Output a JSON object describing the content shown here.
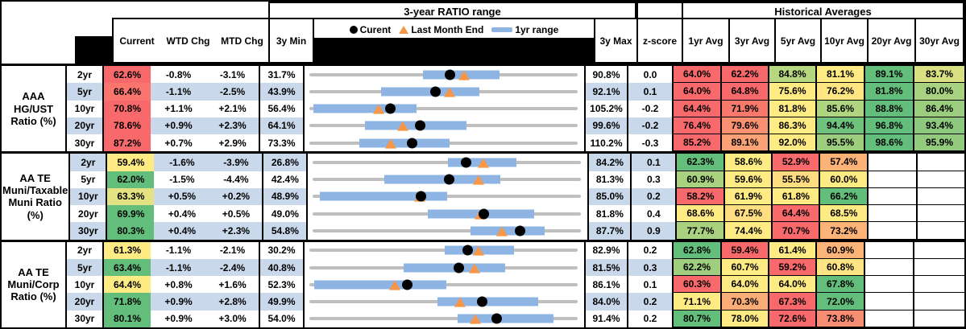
{
  "header": {
    "col_current": "Current",
    "col_wtd": "WTD Chg",
    "col_mtd": "MTD Chg",
    "col_3y_min": "3y Min",
    "col_3y_max": "3y Max",
    "col_zscore": "z-score",
    "chart_title": "3-year RATIO range",
    "hist_title": "Historical Averages",
    "avg_cols": [
      "1yr Avg",
      "3yr Avg",
      "5yr Avg",
      "10yr Avg",
      "20yr Avg",
      "30yr Avg"
    ]
  },
  "legend": {
    "current_label": "Curent",
    "last_month_label": "Last Month End",
    "range_label": "1yr range"
  },
  "colors": {
    "band": "#C9D9EB",
    "bar": "#8DB4E2",
    "track": "#BFBFBF",
    "dot": "#000000",
    "triangle": "#F79646",
    "heat_red": "#F8696B",
    "heat_yellow": "#FFEB84",
    "heat_green": "#63BE7B"
  },
  "chart_data": {
    "type": "table",
    "columns": [
      "Current",
      "WTD Chg",
      "MTD Chg",
      "3y Min",
      "3-year RATIO range",
      "3y Max",
      "z-score",
      "1yr Avg",
      "3yr Avg",
      "5yr Avg",
      "10yr Avg",
      "20yr Avg",
      "30yr Avg"
    ],
    "groups": [
      {
        "label": "AAA HG/UST Ratio (%)",
        "rows": [
          {
            "tenor": "2yr",
            "current": {
              "v": "62.6%",
              "bg": "#F8696B"
            },
            "wtd": "-0.8%",
            "mtd": "-3.1%",
            "min": "31.7%",
            "max": "90.8%",
            "z": "0.0",
            "range": {
              "min": 31.7,
              "max": 90.8,
              "bar_lo": 56.4,
              "bar_hi": 73.6,
              "current": 62.6,
              "last_month": 65.7
            },
            "avgs": [
              {
                "v": "64.0%",
                "bg": "#F8696B"
              },
              {
                "v": "62.2%",
                "bg": "#F8696B"
              },
              {
                "v": "84.8%",
                "bg": "#B5D77F"
              },
              {
                "v": "81.1%",
                "bg": "#FFEB84"
              },
              {
                "v": "89.1%",
                "bg": "#63BE7B"
              },
              {
                "v": "83.7%",
                "bg": "#D8E082"
              }
            ]
          },
          {
            "tenor": "5yr",
            "current": {
              "v": "66.4%",
              "bg": "#F9756E"
            },
            "wtd": "-1.1%",
            "mtd": "-2.5%",
            "min": "43.9%",
            "max": "92.1%",
            "z": "0.1",
            "range": {
              "min": 43.9,
              "max": 92.1,
              "bar_lo": 56.4,
              "bar_hi": 74.4,
              "current": 66.4,
              "last_month": 68.9
            },
            "avgs": [
              {
                "v": "64.0%",
                "bg": "#F8696B"
              },
              {
                "v": "64.8%",
                "bg": "#F8696B"
              },
              {
                "v": "75.6%",
                "bg": "#FFEB84"
              },
              {
                "v": "76.2%",
                "bg": "#FFE683"
              },
              {
                "v": "81.8%",
                "bg": "#63BE7B"
              },
              {
                "v": "80.0%",
                "bg": "#A8D27F"
              }
            ]
          },
          {
            "tenor": "10yr",
            "current": {
              "v": "70.8%",
              "bg": "#F8696B"
            },
            "wtd": "+1.1%",
            "mtd": "+2.1%",
            "min": "56.4%",
            "max": "105.2%",
            "z": "-0.2",
            "range": {
              "min": 56.4,
              "max": 105.2,
              "bar_lo": 56.6,
              "bar_hi": 75.6,
              "current": 70.8,
              "last_month": 68.7
            },
            "avgs": [
              {
                "v": "64.4%",
                "bg": "#F8696B"
              },
              {
                "v": "71.9%",
                "bg": "#F97A6D"
              },
              {
                "v": "81.8%",
                "bg": "#FFEB84"
              },
              {
                "v": "85.6%",
                "bg": "#AFD580"
              },
              {
                "v": "88.8%",
                "bg": "#63BE7B"
              },
              {
                "v": "86.4%",
                "bg": "#9BCD7E"
              }
            ]
          },
          {
            "tenor": "20yr",
            "current": {
              "v": "78.6%",
              "bg": "#F8696B"
            },
            "wtd": "+0.9%",
            "mtd": "+2.3%",
            "min": "64.1%",
            "max": "99.6%",
            "z": "-0.2",
            "range": {
              "min": 64.1,
              "max": 99.6,
              "bar_lo": 71.2,
              "bar_hi": 84.8,
              "current": 78.6,
              "last_month": 76.3
            },
            "avgs": [
              {
                "v": "76.4%",
                "bg": "#F8696B"
              },
              {
                "v": "79.6%",
                "bg": "#FA8F72"
              },
              {
                "v": "86.3%",
                "bg": "#FFEB84"
              },
              {
                "v": "94.4%",
                "bg": "#6EC27C"
              },
              {
                "v": "96.8%",
                "bg": "#63BE7B"
              },
              {
                "v": "93.4%",
                "bg": "#8CC87D"
              }
            ]
          },
          {
            "tenor": "30yr",
            "current": {
              "v": "87.2%",
              "bg": "#F8696B"
            },
            "wtd": "+0.7%",
            "mtd": "+2.9%",
            "min": "73.3%",
            "max": "110.2%",
            "z": "-0.3",
            "range": {
              "min": 73.3,
              "max": 110.2,
              "bar_lo": 79.9,
              "bar_hi": 92.5,
              "current": 87.2,
              "last_month": 84.3
            },
            "avgs": [
              {
                "v": "85.2%",
                "bg": "#F8696B"
              },
              {
                "v": "89.1%",
                "bg": "#FBA376"
              },
              {
                "v": "92.0%",
                "bg": "#FFEB84"
              },
              {
                "v": "95.5%",
                "bg": "#9DCE7E"
              },
              {
                "v": "98.6%",
                "bg": "#63BE7B"
              },
              {
                "v": "95.9%",
                "bg": "#93CB7D"
              }
            ]
          }
        ]
      },
      {
        "label": "AA TE Muni/Taxable Muni Ratio (%)",
        "rows": [
          {
            "tenor": "2yr",
            "current": {
              "v": "59.4%",
              "bg": "#FFEB84"
            },
            "wtd": "-1.6%",
            "mtd": "-3.9%",
            "min": "26.8%",
            "max": "84.2%",
            "z": "0.1",
            "range": {
              "min": 26.8,
              "max": 84.2,
              "bar_lo": 55.5,
              "bar_hi": 70.4,
              "current": 59.4,
              "last_month": 63.3
            },
            "avgs": [
              {
                "v": "62.3%",
                "bg": "#63BE7B"
              },
              {
                "v": "58.6%",
                "bg": "#FFEB84"
              },
              {
                "v": "52.9%",
                "bg": "#F8696B"
              },
              {
                "v": "57.4%",
                "bg": "#FBB377"
              },
              {
                "v": "",
                "bg": "#FFFFFF"
              },
              {
                "v": "",
                "bg": "#FFFFFF"
              }
            ]
          },
          {
            "tenor": "5yr",
            "current": {
              "v": "62.0%",
              "bg": "#63BE7B"
            },
            "wtd": "-1.5%",
            "mtd": "-4.4%",
            "min": "42.4%",
            "max": "81.3%",
            "z": "0.3",
            "range": {
              "min": 42.4,
              "max": 81.3,
              "bar_lo": 52.5,
              "bar_hi": 69.6,
              "current": 62.0,
              "last_month": 66.4
            },
            "avgs": [
              {
                "v": "60.9%",
                "bg": "#A8D27F"
              },
              {
                "v": "59.6%",
                "bg": "#FFEB84"
              },
              {
                "v": "55.5%",
                "bg": "#FFDC81"
              },
              {
                "v": "60.0%",
                "bg": "#FFEB84"
              },
              {
                "v": "",
                "bg": "#FFFFFF"
              },
              {
                "v": "",
                "bg": "#FFFFFF"
              }
            ]
          },
          {
            "tenor": "10yr",
            "current": {
              "v": "63.3%",
              "bg": "#E3E383"
            },
            "wtd": "+0.5%",
            "mtd": "+0.2%",
            "min": "48.9%",
            "max": "85.0%",
            "z": "0.2",
            "range": {
              "min": 48.9,
              "max": 85.0,
              "bar_lo": 49.4,
              "bar_hi": 66.8,
              "current": 63.3,
              "last_month": 63.1
            },
            "avgs": [
              {
                "v": "58.2%",
                "bg": "#F8696B"
              },
              {
                "v": "61.9%",
                "bg": "#FFEB84"
              },
              {
                "v": "61.8%",
                "bg": "#FFEB84"
              },
              {
                "v": "66.2%",
                "bg": "#63BE7B"
              },
              {
                "v": "",
                "bg": "#FFFFFF"
              },
              {
                "v": "",
                "bg": "#FFFFFF"
              }
            ]
          },
          {
            "tenor": "20yr",
            "current": {
              "v": "69.9%",
              "bg": "#63BE7B"
            },
            "wtd": "+0.4%",
            "mtd": "+0.5%",
            "min": "49.0%",
            "max": "81.8%",
            "z": "0.4",
            "range": {
              "min": 49.0,
              "max": 81.8,
              "bar_lo": 62.9,
              "bar_hi": 76.1,
              "current": 69.9,
              "last_month": 69.4
            },
            "avgs": [
              {
                "v": "68.6%",
                "bg": "#FFEB84"
              },
              {
                "v": "67.5%",
                "bg": "#FFDD81"
              },
              {
                "v": "64.4%",
                "bg": "#F8696B"
              },
              {
                "v": "68.5%",
                "bg": "#FFEB84"
              },
              {
                "v": "",
                "bg": "#FFFFFF"
              },
              {
                "v": "",
                "bg": "#FFFFFF"
              }
            ]
          },
          {
            "tenor": "30yr",
            "current": {
              "v": "80.3%",
              "bg": "#63BE7B"
            },
            "wtd": "+0.4%",
            "mtd": "+2.3%",
            "min": "54.8%",
            "max": "87.7%",
            "z": "0.9",
            "range": {
              "min": 54.8,
              "max": 87.7,
              "bar_lo": 74.1,
              "bar_hi": 83.3,
              "current": 80.3,
              "last_month": 78.0
            },
            "avgs": [
              {
                "v": "77.7%",
                "bg": "#A8D27F"
              },
              {
                "v": "74.4%",
                "bg": "#FFEB84"
              },
              {
                "v": "70.7%",
                "bg": "#F8696B"
              },
              {
                "v": "73.2%",
                "bg": "#FBB377"
              },
              {
                "v": "",
                "bg": "#FFFFFF"
              },
              {
                "v": "",
                "bg": "#FFFFFF"
              }
            ]
          }
        ]
      },
      {
        "label": "AA TE Muni/Corp Ratio (%)",
        "rows": [
          {
            "tenor": "2yr",
            "current": {
              "v": "61.3%",
              "bg": "#FFEB84"
            },
            "wtd": "-1.1%",
            "mtd": "-2.1%",
            "min": "30.2%",
            "max": "82.9%",
            "z": "0.2",
            "range": {
              "min": 30.2,
              "max": 82.9,
              "bar_lo": 56.6,
              "bar_hi": 70.5,
              "current": 61.3,
              "last_month": 63.4
            },
            "avgs": [
              {
                "v": "62.8%",
                "bg": "#63BE7B"
              },
              {
                "v": "59.4%",
                "bg": "#F8696B"
              },
              {
                "v": "61.4%",
                "bg": "#FFEB84"
              },
              {
                "v": "60.9%",
                "bg": "#FBB377"
              },
              {
                "v": "",
                "bg": "#FFFFFF"
              },
              {
                "v": "",
                "bg": "#FFFFFF"
              }
            ]
          },
          {
            "tenor": "5yr",
            "current": {
              "v": "63.4%",
              "bg": "#63BE7B"
            },
            "wtd": "-1.1%",
            "mtd": "-2.4%",
            "min": "40.8%",
            "max": "81.5%",
            "z": "0.3",
            "range": {
              "min": 40.8,
              "max": 81.5,
              "bar_lo": 54.9,
              "bar_hi": 70.5,
              "current": 63.4,
              "last_month": 65.8
            },
            "avgs": [
              {
                "v": "62.2%",
                "bg": "#9FCF7E"
              },
              {
                "v": "60.7%",
                "bg": "#FFEB84"
              },
              {
                "v": "59.2%",
                "bg": "#F8696B"
              },
              {
                "v": "60.8%",
                "bg": "#FFE583"
              },
              {
                "v": "",
                "bg": "#FFFFFF"
              },
              {
                "v": "",
                "bg": "#FFFFFF"
              }
            ]
          },
          {
            "tenor": "10yr",
            "current": {
              "v": "64.4%",
              "bg": "#FFEB84"
            },
            "wtd": "+0.8%",
            "mtd": "+1.6%",
            "min": "52.3%",
            "max": "86.1%",
            "z": "0.1",
            "range": {
              "min": 52.3,
              "max": 86.1,
              "bar_lo": 52.5,
              "bar_hi": 69.5,
              "current": 64.4,
              "last_month": 62.8
            },
            "avgs": [
              {
                "v": "60.3%",
                "bg": "#F8696B"
              },
              {
                "v": "64.0%",
                "bg": "#FFEB84"
              },
              {
                "v": "64.0%",
                "bg": "#FFEB84"
              },
              {
                "v": "67.8%",
                "bg": "#63BE7B"
              },
              {
                "v": "",
                "bg": "#FFFFFF"
              },
              {
                "v": "",
                "bg": "#FFFFFF"
              }
            ]
          },
          {
            "tenor": "20yr",
            "current": {
              "v": "71.8%",
              "bg": "#63BE7B"
            },
            "wtd": "+0.9%",
            "mtd": "+2.8%",
            "min": "49.9%",
            "max": "84.0%",
            "z": "0.2",
            "range": {
              "min": 49.9,
              "max": 84.0,
              "bar_lo": 66.1,
              "bar_hi": 79.1,
              "current": 71.8,
              "last_month": 69.0
            },
            "avgs": [
              {
                "v": "71.1%",
                "bg": "#FFEB84"
              },
              {
                "v": "70.3%",
                "bg": "#FBAD78"
              },
              {
                "v": "67.3%",
                "bg": "#F8696B"
              },
              {
                "v": "72.0%",
                "bg": "#63BE7B"
              },
              {
                "v": "",
                "bg": "#FFFFFF"
              },
              {
                "v": "",
                "bg": "#FFFFFF"
              }
            ]
          },
          {
            "tenor": "30yr",
            "current": {
              "v": "80.1%",
              "bg": "#63BE7B"
            },
            "wtd": "+0.9%",
            "mtd": "+3.0%",
            "min": "54.0%",
            "max": "91.4%",
            "z": "0.2",
            "range": {
              "min": 54.0,
              "max": 91.4,
              "bar_lo": 74.6,
              "bar_hi": 88.2,
              "current": 80.1,
              "last_month": 77.1
            },
            "avgs": [
              {
                "v": "80.7%",
                "bg": "#63BE7B"
              },
              {
                "v": "78.0%",
                "bg": "#FFEB84"
              },
              {
                "v": "72.6%",
                "bg": "#F8696B"
              },
              {
                "v": "73.8%",
                "bg": "#F98D71"
              },
              {
                "v": "",
                "bg": "#FFFFFF"
              },
              {
                "v": "",
                "bg": "#FFFFFF"
              }
            ]
          }
        ]
      }
    ]
  }
}
